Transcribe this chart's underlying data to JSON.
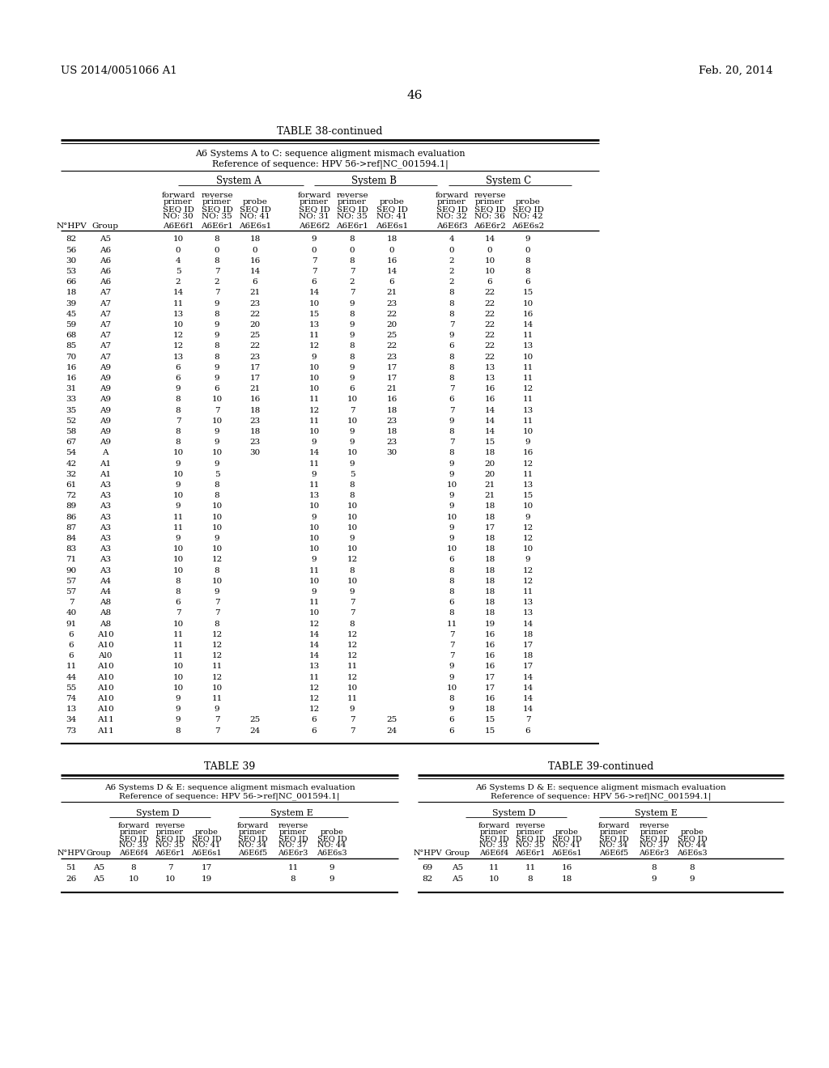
{
  "header_left": "US 2014/0051066 A1",
  "header_right": "Feb. 20, 2014",
  "page_number": "46",
  "table38_title": "TABLE 38-continued",
  "table38_subtitle1": "A6 Systems A to C: sequence aligment mismach evaluation",
  "table38_subtitle2": "Reference of sequence: HPV 56->ref|NC_001594.1|",
  "table38_sys_a": "System A",
  "table38_sys_b": "System B",
  "table38_sys_c": "System C",
  "col_headers_line1": [
    "forward",
    "reverse",
    "",
    "forward",
    "reverse",
    "",
    "forward",
    "reverse",
    ""
  ],
  "col_headers_line2": [
    "primer",
    "primer",
    "probe",
    "primer",
    "primer",
    "probe",
    "primer",
    "primer",
    "probe"
  ],
  "col_headers_line3": [
    "SEQ ID",
    "SEQ ID",
    "SEQ ID",
    "SEQ ID",
    "SEQ ID",
    "SEQ ID",
    "SEQ ID",
    "SEQ ID",
    "SEQ ID"
  ],
  "col_headers_line4": [
    "NO: 30",
    "NO: 35",
    "NO: 41",
    "NO: 31",
    "NO: 35",
    "NO: 41",
    "NO: 32",
    "NO: 36",
    "NO: 42"
  ],
  "col_headers_line5": [
    "A6E6f1",
    "A6E6r1",
    "A6E6s1",
    "A6E6f2",
    "A6E6r1",
    "A6E6s1",
    "A6E6f3",
    "A6E6r2",
    "A6E6s2"
  ],
  "row_hdr0": "N°HPV",
  "row_hdr1": "Group",
  "table38_data": [
    [
      82,
      "A5",
      10,
      8,
      18,
      9,
      8,
      18,
      4,
      14,
      9
    ],
    [
      56,
      "A6",
      0,
      0,
      0,
      0,
      0,
      0,
      0,
      0,
      0
    ],
    [
      30,
      "A6",
      4,
      8,
      16,
      7,
      8,
      16,
      2,
      10,
      8
    ],
    [
      53,
      "A6",
      5,
      7,
      14,
      7,
      7,
      14,
      2,
      10,
      8
    ],
    [
      66,
      "A6",
      2,
      2,
      6,
      6,
      2,
      6,
      2,
      6,
      6
    ],
    [
      18,
      "A7",
      14,
      7,
      21,
      14,
      7,
      21,
      8,
      22,
      15
    ],
    [
      39,
      "A7",
      11,
      9,
      23,
      10,
      9,
      23,
      8,
      22,
      10
    ],
    [
      45,
      "A7",
      13,
      8,
      22,
      15,
      8,
      22,
      8,
      22,
      16
    ],
    [
      59,
      "A7",
      10,
      9,
      20,
      13,
      9,
      20,
      7,
      22,
      14
    ],
    [
      68,
      "A7",
      12,
      9,
      25,
      11,
      9,
      25,
      9,
      22,
      11
    ],
    [
      85,
      "A7",
      12,
      8,
      22,
      12,
      8,
      22,
      6,
      22,
      13
    ],
    [
      70,
      "A7",
      13,
      8,
      23,
      9,
      8,
      23,
      8,
      22,
      10
    ],
    [
      16,
      "A9",
      6,
      9,
      17,
      10,
      9,
      17,
      8,
      13,
      11
    ],
    [
      16,
      "A9",
      6,
      9,
      17,
      10,
      9,
      17,
      8,
      13,
      11
    ],
    [
      31,
      "A9",
      9,
      6,
      21,
      10,
      6,
      21,
      7,
      16,
      12
    ],
    [
      33,
      "A9",
      8,
      10,
      16,
      11,
      10,
      16,
      6,
      16,
      11
    ],
    [
      35,
      "A9",
      8,
      7,
      18,
      12,
      7,
      18,
      7,
      14,
      13
    ],
    [
      52,
      "A9",
      7,
      10,
      23,
      11,
      10,
      23,
      9,
      14,
      11
    ],
    [
      58,
      "A9",
      8,
      9,
      18,
      10,
      9,
      18,
      8,
      14,
      10
    ],
    [
      67,
      "A9",
      8,
      9,
      23,
      9,
      9,
      23,
      7,
      15,
      9
    ],
    [
      54,
      "A",
      10,
      10,
      30,
      14,
      10,
      30,
      8,
      18,
      16
    ],
    [
      42,
      "A1",
      9,
      9,
      "",
      11,
      9,
      "",
      9,
      20,
      12
    ],
    [
      32,
      "A1",
      10,
      5,
      "",
      9,
      5,
      "",
      9,
      20,
      11
    ],
    [
      61,
      "A3",
      9,
      8,
      "",
      11,
      8,
      "",
      10,
      21,
      13
    ],
    [
      72,
      "A3",
      10,
      8,
      "",
      13,
      8,
      "",
      9,
      21,
      15
    ],
    [
      89,
      "A3",
      9,
      10,
      "",
      10,
      10,
      "",
      9,
      18,
      10
    ],
    [
      86,
      "A3",
      11,
      10,
      "",
      9,
      10,
      "",
      10,
      18,
      9
    ],
    [
      87,
      "A3",
      11,
      10,
      "",
      10,
      10,
      "",
      9,
      17,
      12
    ],
    [
      84,
      "A3",
      9,
      9,
      "",
      10,
      9,
      "",
      9,
      18,
      12
    ],
    [
      83,
      "A3",
      10,
      10,
      "",
      10,
      10,
      "",
      10,
      18,
      10
    ],
    [
      71,
      "A3",
      10,
      12,
      "",
      9,
      12,
      "",
      6,
      18,
      9
    ],
    [
      90,
      "A3",
      10,
      8,
      "",
      11,
      8,
      "",
      8,
      18,
      12
    ],
    [
      57,
      "A4",
      8,
      10,
      "",
      10,
      10,
      "",
      8,
      18,
      12
    ],
    [
      57,
      "A4",
      8,
      9,
      "",
      9,
      9,
      "",
      8,
      18,
      11
    ],
    [
      7,
      "A8",
      6,
      7,
      "",
      11,
      7,
      "",
      6,
      18,
      13
    ],
    [
      40,
      "A8",
      7,
      7,
      "",
      10,
      7,
      "",
      8,
      18,
      13
    ],
    [
      91,
      "A8",
      10,
      8,
      "",
      12,
      8,
      "",
      11,
      19,
      14
    ],
    [
      6,
      "A10",
      11,
      12,
      "",
      14,
      12,
      "",
      7,
      16,
      18
    ],
    [
      6,
      "A10",
      11,
      12,
      "",
      14,
      12,
      "",
      7,
      16,
      17
    ],
    [
      6,
      "Al0",
      11,
      12,
      "",
      14,
      12,
      "",
      7,
      16,
      18
    ],
    [
      11,
      "A10",
      10,
      11,
      "",
      13,
      11,
      "",
      9,
      16,
      17
    ],
    [
      44,
      "A10",
      10,
      12,
      "",
      11,
      12,
      "",
      9,
      17,
      14
    ],
    [
      55,
      "A10",
      10,
      10,
      "",
      12,
      10,
      "",
      10,
      17,
      14
    ],
    [
      74,
      "A10",
      9,
      11,
      "",
      12,
      11,
      "",
      8,
      16,
      14
    ],
    [
      13,
      "A10",
      9,
      9,
      "",
      12,
      9,
      "",
      9,
      18,
      14
    ],
    [
      34,
      "A11",
      9,
      7,
      25,
      6,
      7,
      25,
      6,
      15,
      7
    ],
    [
      73,
      "A11",
      8,
      7,
      24,
      6,
      7,
      24,
      6,
      15,
      6
    ]
  ],
  "table39_title": "TABLE 39",
  "table39cont_title": "TABLE 39-continued",
  "table39_subtitle1": "A6 Systems D & E: sequence aligment mismach evaluation",
  "table39_subtitle2": "Reference of sequence: HPV 56->ref|NC_001594.1|",
  "table39_sys_d": "System D",
  "table39_sys_e": "System E",
  "t39_col_hdr1": [
    "forward",
    "reverse",
    "",
    "forward",
    "reverse",
    ""
  ],
  "t39_col_hdr2": [
    "primer",
    "primer",
    "probe",
    "primer",
    "primer",
    "probe"
  ],
  "t39_col_hdr3": [
    "SEQ ID",
    "SEQ ID",
    "SEQ ID",
    "SEQ ID",
    "SEQ ID",
    "SEQ ID"
  ],
  "t39_col_hdr4": [
    "NO: 33",
    "NO: 35",
    "NO: 41",
    "NO: 34",
    "NO: 37",
    "NO: 44"
  ],
  "t39_col_hdr5": [
    "A6E6f4",
    "A6E6r1",
    "A6E6s1",
    "A6E6f5",
    "A6E6r3",
    "A6E6s3"
  ],
  "table39_data_left": [
    [
      51,
      "A5",
      8,
      7,
      17,
      "",
      11,
      9
    ],
    [
      26,
      "A5",
      10,
      10,
      19,
      "",
      8,
      9
    ]
  ],
  "table39_data_right": [
    [
      69,
      "A5",
      11,
      11,
      16,
      "",
      8,
      8
    ],
    [
      82,
      "A5",
      10,
      8,
      18,
      "",
      9,
      9
    ]
  ]
}
